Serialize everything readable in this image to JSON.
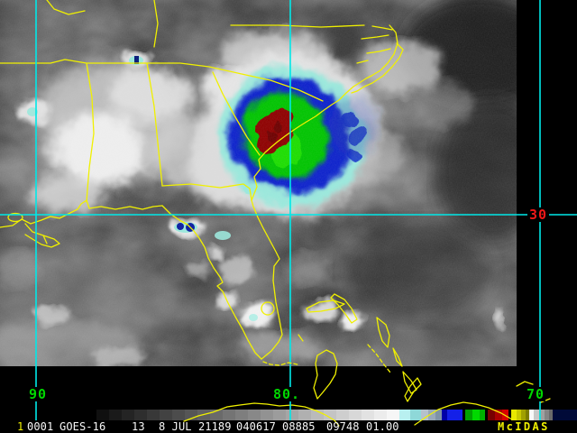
{
  "window": {
    "title": "McIDAS satellite image display",
    "description": "GOES-16 infrared satellite image with color enhancement of a tropical storm over the southeastern United States"
  },
  "theme": {
    "bg": "#000000",
    "map-line": "#f0f000",
    "grid-line": "#00e8e8",
    "lon-label": "#00d800",
    "lat-label": "#f01818",
    "status-text": "#f8f8f8",
    "brand-yellow": "#f0f000"
  },
  "grid": {
    "lat_label": {
      "text": "30"
    },
    "lon_labels": [
      {
        "text": "90"
      },
      {
        "text": "80."
      },
      {
        "text": "70"
      }
    ]
  },
  "status_bar": {
    "frame_number": "1",
    "image_id": "0001",
    "satellite": "GOES-16",
    "band": "13",
    "date": "8 JUL 21189",
    "time": "040617",
    "line": "08885",
    "element": "09748",
    "magnification": "01.00",
    "brand": "McIDAS"
  },
  "colorbar": {
    "segments": [
      {
        "c": "#101010",
        "w": 14
      },
      {
        "c": "#1a1a1a",
        "w": 14
      },
      {
        "c": "#242424",
        "w": 14
      },
      {
        "c": "#2e2e2e",
        "w": 14
      },
      {
        "c": "#383838",
        "w": 14
      },
      {
        "c": "#424242",
        "w": 14
      },
      {
        "c": "#4c4c4c",
        "w": 14
      },
      {
        "c": "#565656",
        "w": 14
      },
      {
        "c": "#606060",
        "w": 14
      },
      {
        "c": "#6a6a6a",
        "w": 14
      },
      {
        "c": "#747474",
        "w": 14
      },
      {
        "c": "#7e7e7e",
        "w": 14
      },
      {
        "c": "#888888",
        "w": 14
      },
      {
        "c": "#929292",
        "w": 14
      },
      {
        "c": "#9c9c9c",
        "w": 14
      },
      {
        "c": "#a6a6a6",
        "w": 14
      },
      {
        "c": "#b0b0b0",
        "w": 14
      },
      {
        "c": "#bababa",
        "w": 14
      },
      {
        "c": "#c4c4c4",
        "w": 14
      },
      {
        "c": "#cecece",
        "w": 14
      },
      {
        "c": "#d8d8d8",
        "w": 14
      },
      {
        "c": "#e2e2e2",
        "w": 14
      },
      {
        "c": "#ececec",
        "w": 14
      },
      {
        "c": "#f6f6f6",
        "w": 14
      },
      {
        "c": "#b8f0f0",
        "w": 12
      },
      {
        "c": "#8ed8d8",
        "w": 12
      },
      {
        "c": "#b4c0cc",
        "w": 8
      },
      {
        "c": "#98a8b8",
        "w": 8
      },
      {
        "c": "#7e92a6",
        "w": 7
      },
      {
        "c": "#0000a8",
        "w": 6
      },
      {
        "c": "#1420e8",
        "w": 17
      },
      {
        "c": "#000000",
        "w": 3
      },
      {
        "c": "#00a000",
        "w": 8
      },
      {
        "c": "#00d800",
        "w": 8
      },
      {
        "c": "#00b000",
        "w": 6
      },
      {
        "c": "#000000",
        "w": 3
      },
      {
        "c": "#780000",
        "w": 8
      },
      {
        "c": "#aa0000",
        "w": 8
      },
      {
        "c": "#d80000",
        "w": 7
      },
      {
        "c": "#000000",
        "w": 3
      },
      {
        "c": "#e8e800",
        "w": 6
      },
      {
        "c": "#c8c800",
        "w": 5
      },
      {
        "c": "#a0a000",
        "w": 5
      },
      {
        "c": "#7c7c00",
        "w": 4
      },
      {
        "c": "#f8f8f8",
        "w": 5
      },
      {
        "c": "#c8c8c8",
        "w": 6
      },
      {
        "c": "#a0a0a0",
        "w": 6
      },
      {
        "c": "#848484",
        "w": 5
      },
      {
        "c": "#6a6a6a",
        "w": 4
      },
      {
        "c": "#000a38",
        "w": 27
      }
    ]
  }
}
